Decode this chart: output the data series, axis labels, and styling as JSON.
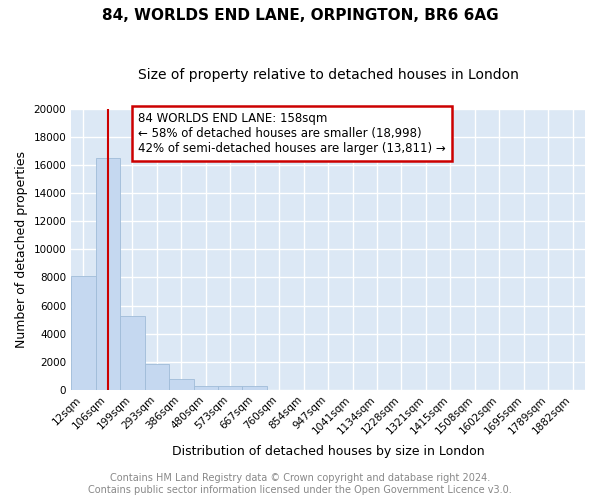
{
  "title1": "84, WORLDS END LANE, ORPINGTON, BR6 6AG",
  "title2": "Size of property relative to detached houses in London",
  "xlabel": "Distribution of detached houses by size in London",
  "ylabel": "Number of detached properties",
  "bar_color": "#c5d8f0",
  "bar_edge_color": "#a0bcd8",
  "categories": [
    "12sqm",
    "106sqm",
    "199sqm",
    "293sqm",
    "386sqm",
    "480sqm",
    "573sqm",
    "667sqm",
    "760sqm",
    "854sqm",
    "947sqm",
    "1041sqm",
    "1134sqm",
    "1228sqm",
    "1321sqm",
    "1415sqm",
    "1508sqm",
    "1602sqm",
    "1695sqm",
    "1789sqm",
    "1882sqm"
  ],
  "values": [
    8100,
    16500,
    5250,
    1800,
    750,
    300,
    250,
    250,
    0,
    0,
    0,
    0,
    0,
    0,
    0,
    0,
    0,
    0,
    0,
    0,
    0
  ],
  "ylim": [
    0,
    20000
  ],
  "yticks": [
    0,
    2000,
    4000,
    6000,
    8000,
    10000,
    12000,
    14000,
    16000,
    18000,
    20000
  ],
  "property_line_x": 1.0,
  "annotation_line1": "84 WORLDS END LANE: 158sqm",
  "annotation_line2": "← 58% of detached houses are smaller (18,998)",
  "annotation_line3": "42% of semi-detached houses are larger (13,811) →",
  "annotation_box_color": "#ffffff",
  "annotation_border_color": "#cc0000",
  "vline_color": "#cc0000",
  "footer1": "Contains HM Land Registry data © Crown copyright and database right 2024.",
  "footer2": "Contains public sector information licensed under the Open Government Licence v3.0.",
  "bg_color": "#ffffff",
  "plot_bg_color": "#dce8f5",
  "grid_color": "#ffffff",
  "title1_fontsize": 11,
  "title2_fontsize": 10,
  "ylabel_fontsize": 9,
  "xlabel_fontsize": 9,
  "tick_fontsize": 7.5,
  "footer_fontsize": 7,
  "annotation_fontsize": 8.5
}
